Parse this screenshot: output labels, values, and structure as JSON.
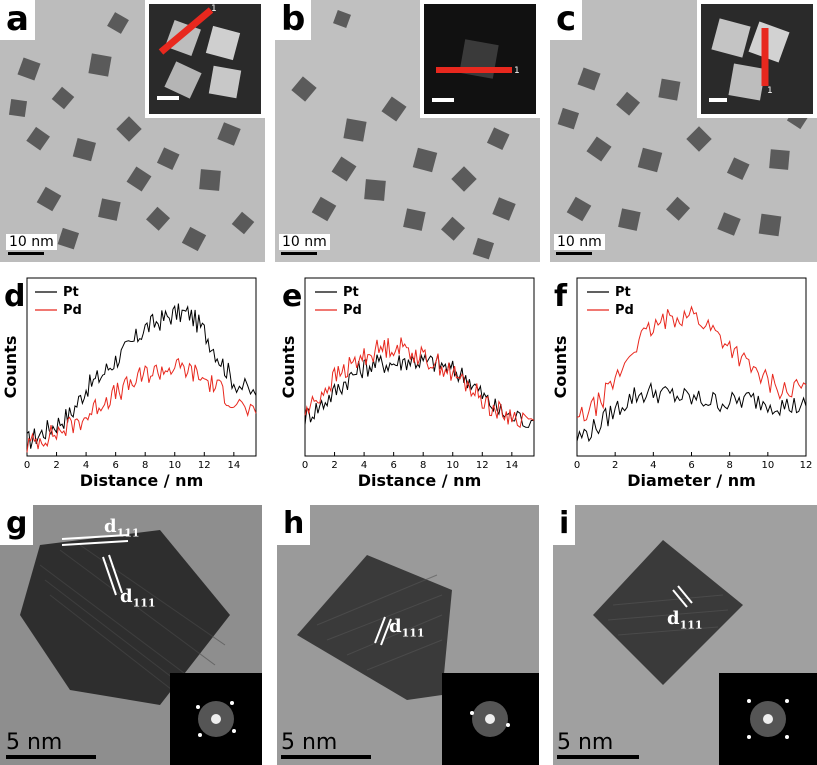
{
  "panels": {
    "a": {
      "letter": "a",
      "scale": "10 nm",
      "inset_marker": "1"
    },
    "b": {
      "letter": "b",
      "scale": "10 nm",
      "inset_marker": "1"
    },
    "c": {
      "letter": "c",
      "scale": "10 nm",
      "inset_marker": "1"
    },
    "g": {
      "letter": "g",
      "scale": "5 nm",
      "d_label": "d",
      "d_sub": "111"
    },
    "h": {
      "letter": "h",
      "scale": "5 nm",
      "d_label": "d",
      "d_sub": "111"
    },
    "i": {
      "letter": "i",
      "scale": "5 nm",
      "d_label": "d",
      "d_sub": "111"
    }
  },
  "colors": {
    "pt": "#000000",
    "pd": "#e8281e",
    "profile_line": "#e8281e"
  },
  "chart_data": [
    {
      "id": "d",
      "letter": "d",
      "type": "line",
      "xlabel": "Distance / nm",
      "ylabel": "Counts",
      "xlim": [
        0,
        15.5
      ],
      "xticks": [
        0,
        2,
        4,
        6,
        8,
        10,
        12,
        14
      ],
      "ylim": [
        0,
        100
      ],
      "legend": [
        "Pt",
        "Pd"
      ],
      "legend_position": "top-left",
      "series": [
        {
          "name": "Pt",
          "x": [
            0,
            1,
            2,
            3,
            4,
            5,
            6,
            7,
            8,
            9,
            10,
            11,
            12,
            13,
            14,
            15.5
          ],
          "values": [
            8,
            13,
            18,
            24,
            38,
            45,
            54,
            62,
            72,
            76,
            80,
            80,
            70,
            55,
            42,
            34
          ]
        },
        {
          "name": "Pd",
          "x": [
            0,
            1,
            2,
            3,
            4,
            5,
            6,
            7,
            8,
            9,
            10,
            11,
            12,
            13,
            14,
            15.5
          ],
          "values": [
            6,
            10,
            13,
            17,
            22,
            30,
            35,
            40,
            46,
            48,
            50,
            48,
            43,
            38,
            30,
            24
          ]
        }
      ]
    },
    {
      "id": "e",
      "letter": "e",
      "type": "line",
      "xlabel": "Distance / nm",
      "ylabel": "Counts",
      "xlim": [
        0,
        15.5
      ],
      "xticks": [
        0,
        2,
        4,
        6,
        8,
        10,
        12,
        14
      ],
      "ylim": [
        0,
        100
      ],
      "legend": [
        "Pt",
        "Pd"
      ],
      "legend_position": "top-center",
      "series": [
        {
          "name": "Pt",
          "x": [
            0,
            1,
            2,
            3,
            4,
            5,
            6,
            7,
            8,
            9,
            10,
            11,
            12,
            13,
            14,
            15.5
          ],
          "values": [
            22,
            28,
            36,
            44,
            50,
            52,
            52,
            54,
            53,
            52,
            48,
            44,
            34,
            26,
            22,
            20
          ]
        },
        {
          "name": "Pd",
          "x": [
            0,
            1,
            2,
            3,
            4,
            5,
            6,
            7,
            8,
            9,
            10,
            11,
            12,
            13,
            14,
            15.5
          ],
          "values": [
            24,
            34,
            44,
            50,
            56,
            60,
            62,
            60,
            55,
            52,
            46,
            40,
            32,
            25,
            22,
            20
          ]
        }
      ]
    },
    {
      "id": "f",
      "letter": "f",
      "type": "line",
      "xlabel": "Diameter / nm",
      "ylabel": "Counts",
      "xlim": [
        0,
        12
      ],
      "xticks": [
        0,
        2,
        4,
        6,
        8,
        10,
        12
      ],
      "ylim": [
        0,
        100
      ],
      "legend": [
        "Pt",
        "Pd"
      ],
      "legend_position": "top-center",
      "series": [
        {
          "name": "Pt",
          "x": [
            0,
            1,
            2,
            3,
            4,
            5,
            6,
            7,
            8,
            9,
            10,
            11,
            12
          ],
          "values": [
            10,
            16,
            26,
            34,
            36,
            34,
            32,
            31,
            30,
            32,
            30,
            28,
            28
          ]
        },
        {
          "name": "Pd",
          "x": [
            0,
            1,
            2,
            3,
            4,
            5,
            6,
            7,
            8,
            9,
            10,
            11,
            12
          ],
          "values": [
            20,
            28,
            42,
            62,
            72,
            78,
            80,
            72,
            62,
            50,
            42,
            36,
            40
          ]
        }
      ]
    }
  ]
}
